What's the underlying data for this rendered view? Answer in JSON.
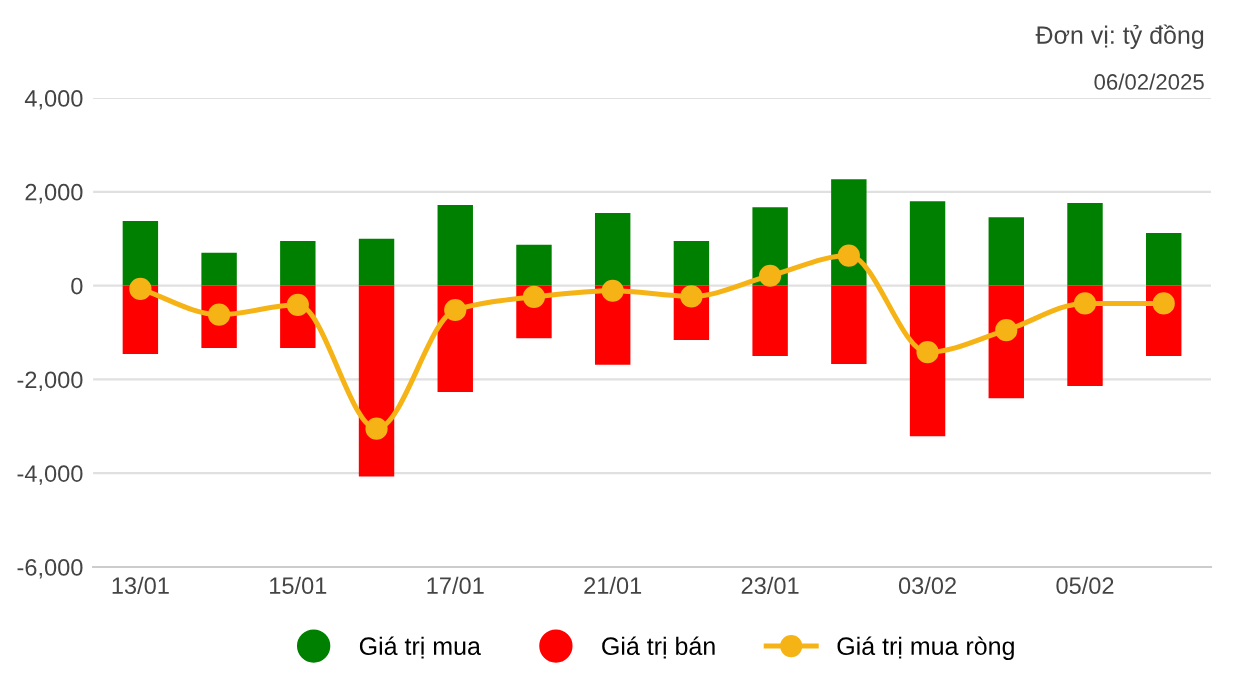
{
  "chart_data": {
    "type": "bar",
    "title": "Đơn vị: tỷ đồng",
    "subtitle": "06/02/2025",
    "categories": [
      "13/01",
      null,
      "15/01",
      null,
      "17/01",
      null,
      "21/01",
      null,
      "23/01",
      null,
      "03/02",
      null,
      "05/02",
      null
    ],
    "series": [
      {
        "name": "Giá trị mua",
        "color": "#008000",
        "values": [
          1380,
          700,
          950,
          1000,
          1720,
          870,
          1550,
          950,
          1670,
          2270,
          1800,
          1460,
          1760,
          1120
        ]
      },
      {
        "name": "Giá trị bán",
        "color": "#ff0000",
        "values": [
          -1460,
          -1330,
          -1330,
          -4070,
          -2270,
          -1120,
          -1690,
          -1160,
          -1500,
          -1670,
          -3210,
          -2400,
          -2140,
          -1500
        ]
      },
      {
        "name": "Giá trị mua ròng",
        "type": "line",
        "color": "#f5b316",
        "marker": "circle",
        "values": [
          -70,
          -620,
          -410,
          -3050,
          -520,
          -240,
          -110,
          -230,
          210,
          640,
          -1420,
          -950,
          -380,
          -380
        ]
      }
    ],
    "ylim": [
      -6000,
      4000
    ],
    "yticks": [
      {
        "value": -6000,
        "label": "-6,000"
      },
      {
        "value": -4000,
        "label": "-4,000"
      },
      {
        "value": -2000,
        "label": "-2,000"
      },
      0,
      {
        "value": 2000,
        "label": "2,000"
      },
      {
        "value": 4000,
        "label": "4,000"
      }
    ],
    "grid": "y",
    "legend": "bottom",
    "stacked": true
  }
}
